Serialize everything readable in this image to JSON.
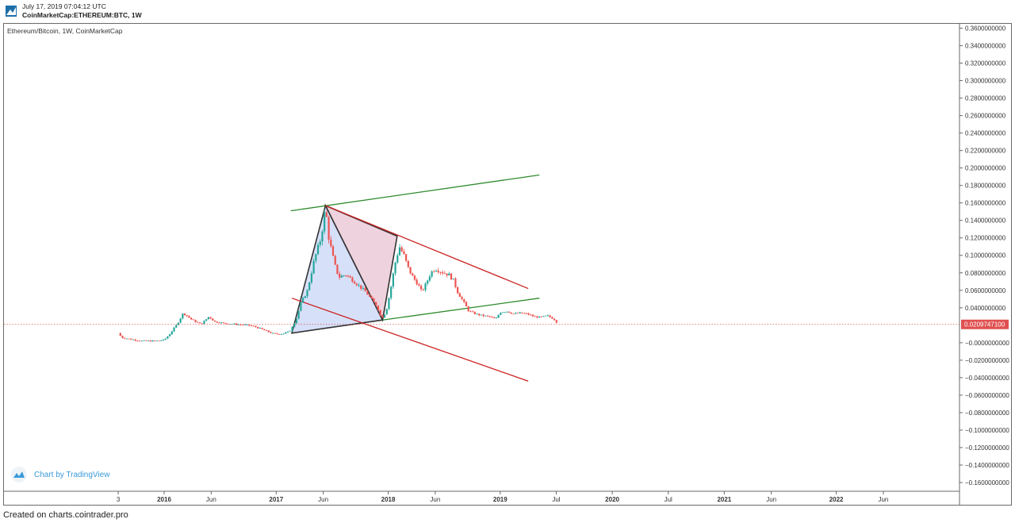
{
  "header": {
    "timestamp": "July 17, 2019 07:04:12 UTC",
    "symbol": "CoinMarketCap:ETHEREUM:BTC, 1W"
  },
  "footer": {
    "text": "Created on charts.cointrader.pro"
  },
  "watermark": {
    "text": "Chart by TradingView"
  },
  "colors": {
    "bull": "#26a69a",
    "bear": "#ef5350",
    "green_line": "#2e8b2e",
    "red_line": "#cc2222",
    "price_line": "#e05050",
    "triangle_blue": "#c8d6f7",
    "triangle_pink": "#e8c3d2"
  },
  "chart_data": {
    "type": "candlestick",
    "title": "Ethereum/Bitcoin, 1W, CoinMarketCap",
    "y_ticks": [
      "0.3600000000",
      "0.3400000000",
      "0.3200000000",
      "0.3000000000",
      "0.2800000000",
      "0.2600000000",
      "0.2400000000",
      "0.2200000000",
      "0.2000000000",
      "0.1800000000",
      "0.1600000000",
      "0.1400000000",
      "0.1200000000",
      "0.1000000000",
      "0.0800000000",
      "0.0600000000",
      "0.0400000000",
      "−0.0000000000",
      "−0.0200000000",
      "−0.0400000000",
      "−0.0600000000",
      "−0.0800000000",
      "−0.1000000000",
      "−0.1200000000",
      "−0.1400000000",
      "−0.1600000000"
    ],
    "y_tick_values": [
      0.36,
      0.34,
      0.32,
      0.3,
      0.28,
      0.26,
      0.24,
      0.22,
      0.2,
      0.18,
      0.16,
      0.14,
      0.12,
      0.1,
      0.08,
      0.06,
      0.04,
      0.0,
      -0.02,
      -0.04,
      -0.06,
      -0.08,
      -0.1,
      -0.12,
      -0.14,
      -0.16
    ],
    "ylim": [
      -0.17,
      0.365
    ],
    "last_price": {
      "label": "0.0209747100",
      "value": 0.0209747
    },
    "x_ticks": [
      {
        "label": "3",
        "t": 2015.59
      },
      {
        "label": "2016",
        "t": 2016.0
      },
      {
        "label": "Jun",
        "t": 2016.42
      },
      {
        "label": "2017",
        "t": 2017.0
      },
      {
        "label": "Jun",
        "t": 2017.42
      },
      {
        "label": "2018",
        "t": 2018.0
      },
      {
        "label": "Jun",
        "t": 2018.42
      },
      {
        "label": "2019",
        "t": 2019.0
      },
      {
        "label": "Jul",
        "t": 2019.5
      },
      {
        "label": "2020",
        "t": 2020.0
      },
      {
        "label": "Jul",
        "t": 2020.5
      },
      {
        "label": "2021",
        "t": 2021.0
      },
      {
        "label": "Jun",
        "t": 2021.42
      },
      {
        "label": "2022",
        "t": 2022.0
      },
      {
        "label": "Jun",
        "t": 2022.42
      }
    ],
    "xlim": [
      2014.57,
      2023.1
    ],
    "price_path": [
      [
        2015.59,
        0.011
      ],
      [
        2015.62,
        0.006
      ],
      [
        2015.7,
        0.004
      ],
      [
        2015.8,
        0.002
      ],
      [
        2015.9,
        0.002
      ],
      [
        2016.0,
        0.003
      ],
      [
        2016.05,
        0.01
      ],
      [
        2016.12,
        0.022
      ],
      [
        2016.17,
        0.034
      ],
      [
        2016.25,
        0.026
      ],
      [
        2016.33,
        0.021
      ],
      [
        2016.4,
        0.03
      ],
      [
        2016.45,
        0.024
      ],
      [
        2016.55,
        0.022
      ],
      [
        2016.65,
        0.021
      ],
      [
        2016.75,
        0.02
      ],
      [
        2016.82,
        0.018
      ],
      [
        2016.9,
        0.014
      ],
      [
        2016.98,
        0.01
      ],
      [
        2017.05,
        0.01
      ],
      [
        2017.12,
        0.013
      ],
      [
        2017.18,
        0.027
      ],
      [
        2017.22,
        0.045
      ],
      [
        2017.28,
        0.06
      ],
      [
        2017.34,
        0.095
      ],
      [
        2017.4,
        0.12
      ],
      [
        2017.44,
        0.155
      ],
      [
        2017.47,
        0.12
      ],
      [
        2017.52,
        0.09
      ],
      [
        2017.56,
        0.075
      ],
      [
        2017.62,
        0.078
      ],
      [
        2017.68,
        0.072
      ],
      [
        2017.74,
        0.065
      ],
      [
        2017.8,
        0.058
      ],
      [
        2017.86,
        0.048
      ],
      [
        2017.9,
        0.042
      ],
      [
        2017.94,
        0.028
      ],
      [
        2017.98,
        0.035
      ],
      [
        2018.02,
        0.06
      ],
      [
        2018.06,
        0.09
      ],
      [
        2018.1,
        0.11
      ],
      [
        2018.14,
        0.1
      ],
      [
        2018.18,
        0.085
      ],
      [
        2018.22,
        0.075
      ],
      [
        2018.26,
        0.068
      ],
      [
        2018.3,
        0.058
      ],
      [
        2018.34,
        0.068
      ],
      [
        2018.38,
        0.08
      ],
      [
        2018.42,
        0.085
      ],
      [
        2018.48,
        0.081
      ],
      [
        2018.54,
        0.078
      ],
      [
        2018.58,
        0.072
      ],
      [
        2018.62,
        0.058
      ],
      [
        2018.68,
        0.045
      ],
      [
        2018.72,
        0.036
      ],
      [
        2018.78,
        0.033
      ],
      [
        2018.84,
        0.031
      ],
      [
        2018.9,
        0.03
      ],
      [
        2018.96,
        0.027
      ],
      [
        2019.0,
        0.035
      ],
      [
        2019.06,
        0.036
      ],
      [
        2019.12,
        0.033
      ],
      [
        2019.18,
        0.034
      ],
      [
        2019.24,
        0.033
      ],
      [
        2019.3,
        0.03
      ],
      [
        2019.36,
        0.029
      ],
      [
        2019.42,
        0.031
      ],
      [
        2019.48,
        0.027
      ],
      [
        2019.52,
        0.021
      ]
    ],
    "drawings": [
      {
        "kind": "line",
        "color": "green",
        "from": [
          2017.13,
          0.151
        ],
        "to": [
          2019.35,
          0.192
        ]
      },
      {
        "kind": "line",
        "color": "green",
        "from": [
          2017.95,
          0.026
        ],
        "to": [
          2019.35,
          0.051
        ]
      },
      {
        "kind": "line",
        "color": "red",
        "from": [
          2017.44,
          0.157
        ],
        "to": [
          2019.25,
          0.062
        ]
      },
      {
        "kind": "line",
        "color": "red",
        "from": [
          2017.14,
          0.051
        ],
        "to": [
          2019.25,
          -0.044
        ]
      },
      {
        "kind": "triangle",
        "fill": "blue",
        "points": [
          [
            2017.14,
            0.011
          ],
          [
            2017.44,
            0.157
          ],
          [
            2017.95,
            0.026
          ]
        ]
      },
      {
        "kind": "triangle",
        "fill": "pink",
        "points": [
          [
            2017.44,
            0.157
          ],
          [
            2018.08,
            0.122
          ],
          [
            2017.95,
            0.026
          ]
        ]
      }
    ]
  }
}
